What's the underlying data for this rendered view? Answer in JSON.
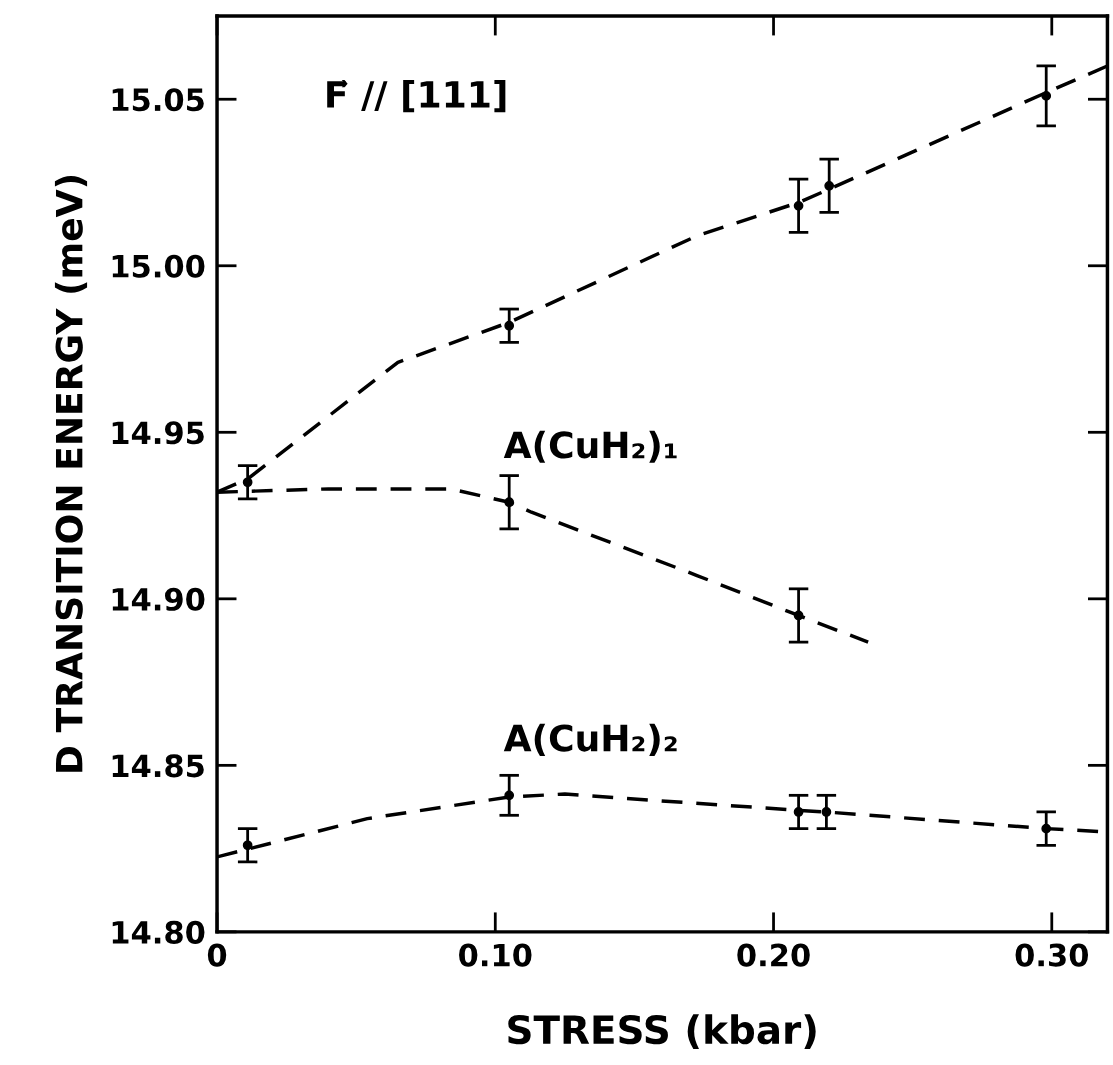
{
  "chart_data": {
    "type": "scatter",
    "xlabel": "STRESS (kbar)",
    "ylabel": "D TRANSITION ENERGY (meV)",
    "annotations": [
      "F⃗ // [111]"
    ],
    "xlim": [
      0,
      0.32
    ],
    "ylim": [
      14.8,
      15.075
    ],
    "xticks": [
      {
        "value": 0,
        "label": "0"
      },
      {
        "value": 0.1,
        "label": "0.10"
      },
      {
        "value": 0.2,
        "label": "0.20"
      },
      {
        "value": 0.3,
        "label": "0.30"
      }
    ],
    "yticks": [
      {
        "value": 14.8,
        "label": "14.80"
      },
      {
        "value": 14.85,
        "label": "14.85"
      },
      {
        "value": 14.9,
        "label": "14.90"
      },
      {
        "value": 14.95,
        "label": "14.95"
      },
      {
        "value": 15.0,
        "label": "15.00"
      },
      {
        "value": 15.05,
        "label": "15.05"
      }
    ],
    "grid": false,
    "legend": false,
    "marker": "circle",
    "series": [
      {
        "color": "#000000",
        "x": [
          0.011,
          0.105,
          0.209,
          0.22,
          0.298
        ],
        "values": [
          14.935,
          14.982,
          15.018,
          15.024,
          15.051
        ],
        "errors": [
          0.005,
          0.005,
          0.008,
          0.008,
          0.009
        ]
      },
      {
        "name": "A(CuH₂)₁",
        "color": "#000000",
        "x": [
          0.105,
          0.209
        ],
        "values": [
          14.929,
          14.895
        ],
        "errors": [
          0.008,
          0.008
        ]
      },
      {
        "name": "A(CuH₂)₂",
        "color": "#000000",
        "x": [
          0.011,
          0.105,
          0.209,
          0.219,
          0.298
        ],
        "values": [
          14.826,
          14.841,
          14.836,
          14.836,
          14.831
        ],
        "errors": [
          0.005,
          0.006,
          0.005,
          0.005,
          0.005
        ]
      },
      {
        "type": "line",
        "line_style": "dashed",
        "marker": "none",
        "color": "#000000",
        "x": [
          0,
          0.011,
          0.065,
          0.105,
          0.1725,
          0.209,
          0.22,
          0.298,
          0.32
        ],
        "values": [
          14.932,
          14.936,
          14.971,
          14.983,
          15.009,
          15.019,
          15.023,
          15.052,
          15.06
        ]
      },
      {
        "type": "line",
        "line_style": "dashed",
        "marker": "none",
        "color": "#000000",
        "x": [
          0,
          0.04,
          0.084,
          0.105,
          0.113,
          0.1725,
          0.209,
          0.234
        ],
        "values": [
          14.932,
          14.933,
          14.933,
          14.929,
          14.926,
          14.907,
          14.895,
          14.887
        ]
      },
      {
        "type": "line",
        "line_style": "dashed",
        "marker": "none",
        "color": "#000000",
        "x": [
          0,
          0.054,
          0.105,
          0.125,
          0.155,
          0.209,
          0.219,
          0.298,
          0.32
        ],
        "values": [
          14.8225,
          14.834,
          14.8405,
          14.8414,
          14.8396,
          14.8365,
          14.836,
          14.831,
          14.83
        ]
      }
    ]
  }
}
